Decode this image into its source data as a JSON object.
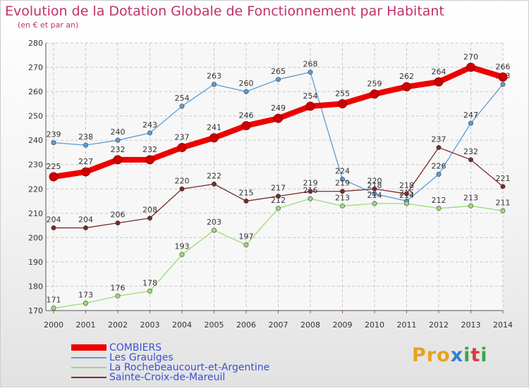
{
  "title": "Evolution de la Dotation Globale de Fonctionnement par Habitant",
  "subtitle": "(en € et par an)",
  "logo": {
    "letters": [
      "P",
      "r",
      "o",
      "x",
      "i",
      "t",
      "i"
    ],
    "colors": [
      "#e8a21c",
      "#e8a21c",
      "#e8a21c",
      "#2f80d0",
      "#3aa845",
      "#d43d3d",
      "#3aa845"
    ]
  },
  "chart_data": {
    "type": "line",
    "title": "Evolution de la Dotation Globale de Fonctionnement par Habitant",
    "subtitle": "(en € et par an)",
    "xlabel": "",
    "ylabel": "",
    "ylim": [
      170,
      280
    ],
    "yticks": [
      170,
      180,
      190,
      200,
      210,
      220,
      230,
      240,
      250,
      260,
      270,
      280
    ],
    "grid": true,
    "legend_position": "bottom-left",
    "categories": [
      "2000",
      "2001",
      "2002",
      "2003",
      "2004",
      "2005",
      "2006",
      "2007",
      "2008",
      "2009",
      "2010",
      "2011",
      "2012",
      "2013",
      "2014"
    ],
    "series": [
      {
        "name": "COMBIERS",
        "color": "#ee0000",
        "bold": true,
        "values": [
          225,
          227,
          232,
          232,
          237,
          241,
          246,
          249,
          254,
          255,
          259,
          262,
          264,
          270,
          266
        ]
      },
      {
        "name": "Les Graulges",
        "color": "#5b9bd5",
        "bold": false,
        "values": [
          239,
          238,
          240,
          243,
          254,
          263,
          260,
          265,
          268,
          224,
          218,
          215,
          226,
          247,
          263
        ]
      },
      {
        "name": "La Rochebeaucourt-et-Argentine",
        "color": "#99dd77",
        "bold": false,
        "values": [
          171,
          173,
          176,
          178,
          193,
          203,
          197,
          212,
          216,
          213,
          214,
          214,
          212,
          213,
          211
        ]
      },
      {
        "name": "Sainte-Croix-de-Mareuil",
        "color": "#7a2a2a",
        "bold": false,
        "values": [
          204,
          204,
          206,
          208,
          220,
          222,
          215,
          217,
          219,
          219,
          220,
          218,
          237,
          232,
          221
        ]
      }
    ]
  }
}
